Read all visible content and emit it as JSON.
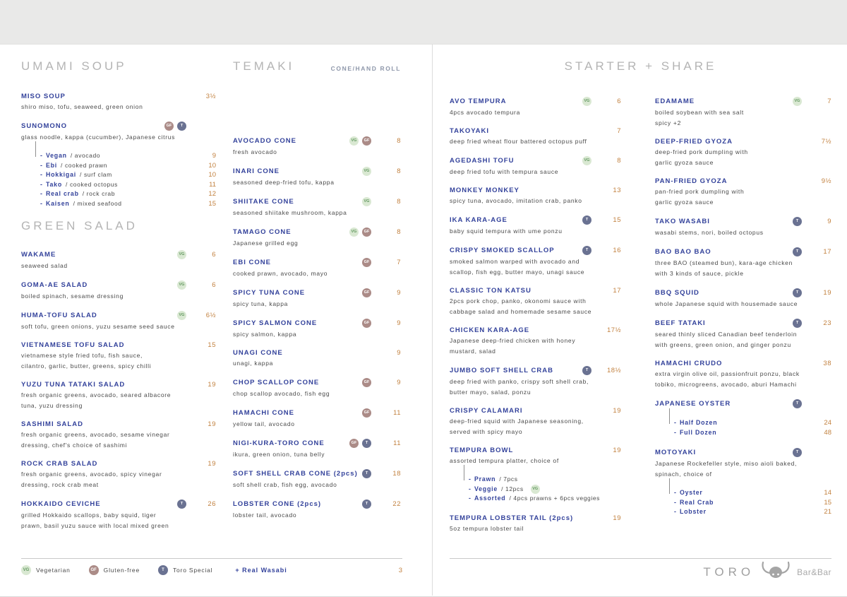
{
  "colors": {
    "item_name": "#33429b",
    "price": "#c2813f",
    "description": "#4a4a4a",
    "section_header": "#b4b4b4",
    "badge_vg_bg": "#d9e8d2",
    "badge_vg_text": "#649a62",
    "badge_gf_bg": "#ab8b87",
    "badge_t_bg": "#6a7292",
    "top_band": "#e9e9e8"
  },
  "sections": [
    {
      "title": "UMAMI SOUP",
      "items": [
        {
          "name": "MISO SOUP",
          "price": "3½",
          "desc": [
            "shiro miso, tofu, seaweed, green onion"
          ]
        },
        {
          "name": "SUNOMONO",
          "badges": [
            "GF",
            "T"
          ],
          "desc": [
            "glass noodle, kappa (cucumber), Japanese citrus"
          ],
          "options": [
            {
              "name": "Vegan",
              "desc": "avocado",
              "price": "9"
            },
            {
              "name": "Ebi",
              "desc": "cooked prawn",
              "price": "10"
            },
            {
              "name": "Hokkigai",
              "desc": "surf clam",
              "price": "10"
            },
            {
              "name": "Tako",
              "desc": "cooked octopus",
              "price": "11"
            },
            {
              "name": "Real crab",
              "desc": "rock crab",
              "price": "12"
            },
            {
              "name": "Kaisen",
              "desc": "mixed seafood",
              "price": "15"
            }
          ]
        }
      ]
    },
    {
      "title": "GREEN SALAD",
      "items": [
        {
          "name": "WAKAME",
          "badges": [
            "VG"
          ],
          "price": "6",
          "desc": [
            "seaweed salad"
          ]
        },
        {
          "name": "GOMA-AE SALAD",
          "badges": [
            "VG"
          ],
          "price": "6",
          "desc": [
            "boiled spinach, sesame dressing"
          ]
        },
        {
          "name": "HUMA-TOFU SALAD",
          "badges": [
            "VG"
          ],
          "price": "6½",
          "desc": [
            "soft tofu, green onions, yuzu sesame seed sauce"
          ]
        },
        {
          "name": "VIETNAMESE TOFU SALAD",
          "price": "15",
          "desc": [
            "vietnamese style fried tofu, fish sauce,",
            "cilantro, garlic, butter, greens, spicy chilli"
          ]
        },
        {
          "name": "YUZU TUNA TATAKI SALAD",
          "price": "19",
          "desc": [
            "fresh organic greens, avocado, seared albacore",
            "tuna, yuzu dressing"
          ]
        },
        {
          "name": "SASHIMI SALAD",
          "price": "19",
          "desc": [
            "fresh organic greens, avocado, sesame vinegar",
            "dressing, chef's choice of sashimi"
          ]
        },
        {
          "name": "ROCK CRAB SALAD",
          "price": "19",
          "desc": [
            "fresh organic greens, avocado, spicy vinegar",
            "dressing, rock crab meat"
          ]
        },
        {
          "name": "HOKKAIDO CEVICHE",
          "badges": [
            "T"
          ],
          "price": "26",
          "desc": [
            "grilled Hokkaido scallops, baby squid, tiger",
            "prawn, basil yuzu sauce with local mixed green"
          ]
        }
      ]
    },
    {
      "title": "TEMAKI",
      "subtitle": "CONE/HAND ROLL",
      "items": [
        {
          "name": "AVOCADO CONE",
          "badges": [
            "VG",
            "GF"
          ],
          "price": "8",
          "desc": [
            "fresh avocado"
          ]
        },
        {
          "name": "INARI CONE",
          "badges": [
            "VG"
          ],
          "price": "8",
          "desc": [
            "seasoned deep-fried tofu, kappa"
          ]
        },
        {
          "name": "SHIITAKE CONE",
          "badges": [
            "VG"
          ],
          "price": "8",
          "desc": [
            "seasoned shiitake mushroom, kappa"
          ]
        },
        {
          "name": "TAMAGO CONE",
          "badges": [
            "VG",
            "GF"
          ],
          "price": "8",
          "desc": [
            "Japanese grilled egg"
          ]
        },
        {
          "name": "EBI CONE",
          "badges": [
            "GF"
          ],
          "price": "7",
          "desc": [
            "cooked prawn, avocado, mayo"
          ]
        },
        {
          "name": "SPICY TUNA CONE",
          "badges": [
            "GF"
          ],
          "price": "9",
          "desc": [
            "spicy tuna, kappa"
          ]
        },
        {
          "name": "SPICY SALMON CONE",
          "badges": [
            "GF"
          ],
          "price": "9",
          "desc": [
            "spicy salmon, kappa"
          ]
        },
        {
          "name": "UNAGI CONE",
          "price": "9",
          "desc": [
            "unagi, kappa"
          ]
        },
        {
          "name": "CHOP SCALLOP CONE",
          "badges": [
            "GF"
          ],
          "price": "9",
          "desc": [
            "chop scallop avocado, fish egg"
          ]
        },
        {
          "name": "HAMACHI CONE",
          "badges": [
            "GF"
          ],
          "price": "11",
          "desc": [
            "yellow tail, avocado"
          ]
        },
        {
          "name": "NIGI-KURA-TORO CONE",
          "badges": [
            "GF",
            "T"
          ],
          "price": "11",
          "desc": [
            "ikura, green onion, tuna belly"
          ]
        },
        {
          "name": "SOFT SHELL CRAB CONE (2pcs)",
          "badges": [
            "T"
          ],
          "price": "18",
          "desc": [
            "soft shell crab, fish egg, avocado"
          ]
        },
        {
          "name": "LOBSTER CONE (2pcs)",
          "badges": [
            "T"
          ],
          "price": "22",
          "desc": [
            "lobster tail, avocado"
          ]
        }
      ]
    },
    {
      "title": "STARTER + SHARE",
      "col_a": [
        {
          "name": "AVO TEMPURA",
          "badges": [
            "VG"
          ],
          "price": "6",
          "desc": [
            "4pcs avocado tempura"
          ]
        },
        {
          "name": "TAKOYAKI",
          "price": "7",
          "desc": [
            "deep fried wheat flour battered octopus puff"
          ]
        },
        {
          "name": "AGEDASHI TOFU",
          "badges": [
            "VG"
          ],
          "price": "8",
          "desc": [
            "deep fried tofu with tempura sauce"
          ]
        },
        {
          "name": "MONKEY MONKEY",
          "price": "13",
          "desc": [
            "spicy tuna, avocado, imitation crab, panko"
          ]
        },
        {
          "name": "IKA KARA-AGE",
          "badges": [
            "T"
          ],
          "price": "15",
          "desc": [
            "baby squid tempura with ume ponzu"
          ]
        },
        {
          "name": "CRISPY SMOKED SCALLOP",
          "badges": [
            "T"
          ],
          "price": "16",
          "desc": [
            "smoked salmon warped with avocado and",
            "scallop, fish egg, butter mayo, unagi sauce"
          ]
        },
        {
          "name": "CLASSIC TON KATSU",
          "price": "17",
          "desc": [
            "2pcs pork chop, panko, okonomi sauce with",
            "cabbage salad and homemade sesame sauce"
          ]
        },
        {
          "name": "CHICKEN KARA-AGE",
          "price": "17½",
          "desc": [
            "Japanese deep-fried chicken with honey",
            "mustard, salad"
          ]
        },
        {
          "name": "JUMBO SOFT SHELL CRAB",
          "badges": [
            "T"
          ],
          "price": "18½",
          "desc": [
            "deep fried with panko, crispy soft shell crab,",
            "butter mayo, salad, ponzu"
          ]
        },
        {
          "name": "CRISPY CALAMARI",
          "price": "19",
          "desc": [
            "deep-fried squid with Japanese seasoning,",
            "served with spicy mayo"
          ]
        },
        {
          "name": "TEMPURA BOWL",
          "price": "19",
          "desc": [
            "assorted tempura platter, choice of"
          ],
          "options": [
            {
              "name": "Prawn",
              "desc": "7pcs"
            },
            {
              "name": "Veggie",
              "desc": "12pcs",
              "badge": "VG"
            },
            {
              "name": "Assorted",
              "desc": "4pcs prawns + 6pcs veggies"
            }
          ]
        },
        {
          "name": "TEMPURA LOBSTER TAIL (2pcs)",
          "price": "19",
          "desc": [
            "5oz tempura lobster tail"
          ]
        }
      ],
      "col_b": [
        {
          "name": "EDAMAME",
          "badges": [
            "VG"
          ],
          "price": "7",
          "desc": [
            "boiled soybean with sea salt",
            "spicy +2"
          ]
        },
        {
          "name": "DEEP-FRIED GYOZA",
          "price": "7½",
          "desc": [
            "deep-fried pork dumpling with",
            "garlic gyoza sauce"
          ]
        },
        {
          "name": "PAN-FRIED GYOZA",
          "price": "9½",
          "desc": [
            "pan-fried pork dumpling with",
            "garlic gyoza sauce"
          ]
        },
        {
          "name": "TAKO WASABI",
          "badges": [
            "T"
          ],
          "price": "9",
          "desc": [
            "wasabi stems, nori, boiled octopus"
          ]
        },
        {
          "name": "BAO BAO BAO",
          "badges": [
            "T"
          ],
          "price": "17",
          "desc": [
            "three BAO (steamed bun), kara-age chicken",
            "with 3 kinds of sauce, pickle"
          ]
        },
        {
          "name": "BBQ SQUID",
          "badges": [
            "T"
          ],
          "price": "19",
          "desc": [
            "whole Japanese squid with housemade sauce"
          ]
        },
        {
          "name": "BEEF TATAKI",
          "badges": [
            "T"
          ],
          "price": "23",
          "desc": [
            "seared thinly sliced Canadian beef tenderloin",
            "with greens, green onion, and ginger ponzu"
          ]
        },
        {
          "name": "HAMACHI CRUDO",
          "price": "38",
          "desc": [
            "extra virgin olive oil, passionfruit ponzu, black",
            "tobiko, microgreens, avocado, aburi Hamachi"
          ]
        },
        {
          "name": "JAPANESE OYSTER",
          "badges": [
            "T"
          ],
          "options": [
            {
              "name": "Half Dozen",
              "price": "24"
            },
            {
              "name": "Full Dozen",
              "price": "48"
            }
          ]
        },
        {
          "name": "MOTOYAKI",
          "badges": [
            "T"
          ],
          "desc": [
            "Japanese Rockefeller style, miso aioli baked,",
            "spinach, choice of"
          ],
          "options": [
            {
              "name": "Oyster",
              "price": "14"
            },
            {
              "name": "Real Crab",
              "price": "15"
            },
            {
              "name": "Lobster",
              "price": "21"
            }
          ]
        }
      ]
    }
  ],
  "footer": {
    "legend": [
      {
        "badge": "VG",
        "label": "Vegetarian"
      },
      {
        "badge": "GF",
        "label": "Gluten-free"
      },
      {
        "badge": "T",
        "label": "Toro Special"
      }
    ],
    "wasabi_label": "+ Real Wasabi",
    "wasabi_price": "3",
    "logo": {
      "name": "TORO",
      "suffix": "Bar&Bar"
    }
  }
}
